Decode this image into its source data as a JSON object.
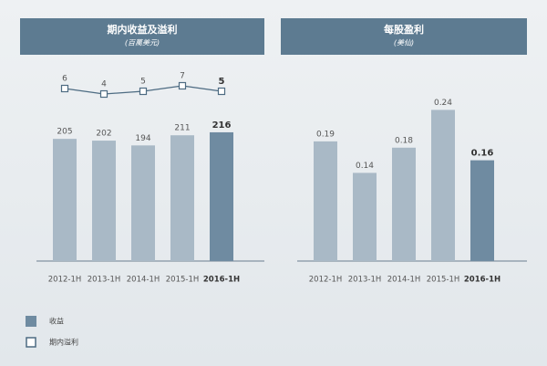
{
  "chart_data": [
    {
      "type": "combo",
      "title": "期内收益及溢利",
      "subtitle": "(百萬美元)",
      "categories": [
        "2012-1H",
        "2013-1H",
        "2014-1H",
        "2015-1H",
        "2016-1H"
      ],
      "series": [
        {
          "name": "收益",
          "type": "bar",
          "color": "#a9b9c6",
          "highlight_color": "#6f8ba1",
          "values": [
            205,
            202,
            194,
            211,
            216
          ]
        },
        {
          "name": "期内溢利",
          "type": "line",
          "color": "#4d6b82",
          "values": [
            6,
            4,
            5,
            7,
            5
          ]
        }
      ]
    },
    {
      "type": "bar",
      "title": "每股盈利",
      "subtitle": "(美仙)",
      "categories": [
        "2012-1H",
        "2013-1H",
        "2014-1H",
        "2015-1H",
        "2016-1H"
      ],
      "color": "#a9b9c6",
      "highlight_color": "#6f8ba1",
      "values": [
        0.19,
        0.14,
        0.18,
        0.24,
        0.16
      ]
    }
  ]
}
